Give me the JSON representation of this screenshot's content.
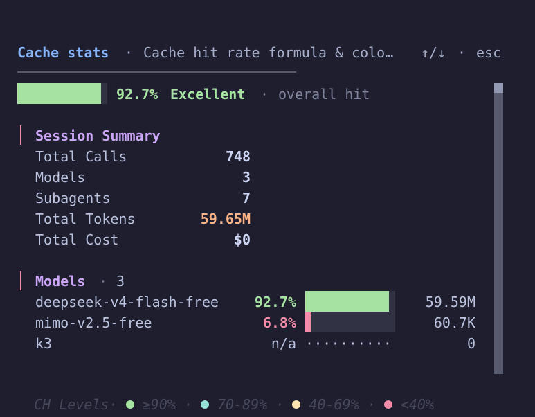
{
  "header": {
    "title": "Cache stats",
    "separator": "·",
    "subtitle": "Cache hit rate formula & colo…",
    "nav_hint": "↑/↓",
    "close_hint": "esc"
  },
  "overall": {
    "rate": 0.927,
    "percent_label": "92.7%",
    "rating": "Excellent",
    "separator": "·",
    "caption": "overall hit",
    "bar_color": "#a6e3a1"
  },
  "session_summary": {
    "title": "Session Summary",
    "rows": [
      {
        "label": "Total Calls",
        "value": "748"
      },
      {
        "label": "Models",
        "value": "3"
      },
      {
        "label": "Subagents",
        "value": "7"
      },
      {
        "label": "Total Tokens",
        "value": "59.65M"
      },
      {
        "label": "Total Cost",
        "value": "$0"
      }
    ]
  },
  "models": {
    "title": "Models",
    "separator": "·",
    "count": "3",
    "rows": [
      {
        "name": "deepseek-v4-flash-free",
        "rate_label": "92.7%",
        "rate": 0.927,
        "color": "#a6e3a1",
        "tokens": "59.59M"
      },
      {
        "name": "mimo-v2.5-free",
        "rate_label": "6.8%",
        "rate": 0.068,
        "color": "#f38ba8",
        "tokens": "60.7K"
      },
      {
        "name": "k3",
        "rate_label": "n/a",
        "rate": null,
        "placeholder": "··········",
        "tokens": "0"
      }
    ]
  },
  "legend": {
    "title": "CH Levels",
    "separator": "·",
    "items": [
      {
        "label": "≥90%",
        "color": "#a6e3a1",
        "icon": "green-dot"
      },
      {
        "label": "70-89%",
        "color": "#94e2d5",
        "icon": "teal-dot"
      },
      {
        "label": "40-69%",
        "color": "#f9e2af",
        "icon": "yellow-dot"
      },
      {
        "label": "<40%",
        "color": "#f38ba8",
        "icon": "red-dot"
      }
    ]
  }
}
